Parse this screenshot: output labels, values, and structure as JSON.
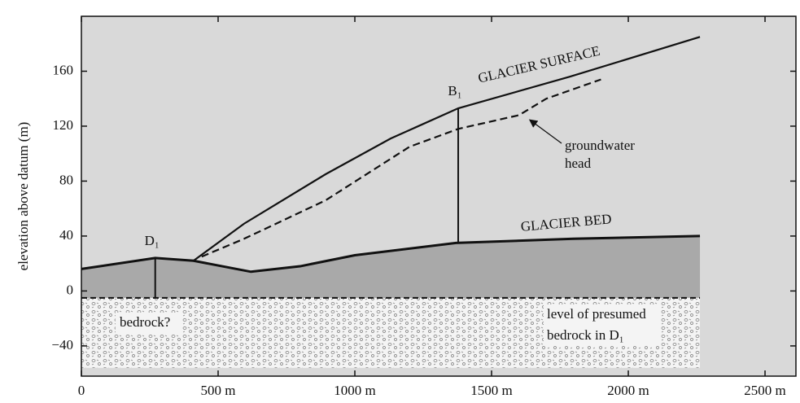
{
  "chart_data": {
    "type": "line",
    "ylabel": "elevation above datum (m)",
    "xlim": [
      0,
      2613
    ],
    "ylim": [
      -62,
      200
    ],
    "xticks": [
      0,
      {
        "value": 500,
        "label": "500 m"
      },
      {
        "value": 1000,
        "label": "1000 m"
      },
      {
        "value": 1500,
        "label": "1500 m"
      },
      {
        "value": 2000,
        "label": "2000 m"
      },
      {
        "value": 2500,
        "label": "2500 m"
      }
    ],
    "yticks": [
      {
        "value": -40,
        "label": "−40"
      },
      0,
      40,
      80,
      120,
      160
    ],
    "series": [
      {
        "name": "GLACIER SURFACE",
        "color": "#111111",
        "style": "solid",
        "x": [
          410,
          595,
          893,
          1131,
          1378,
          1786,
          2262
        ],
        "values": [
          22,
          49,
          85,
          111,
          133,
          156,
          185
        ]
      },
      {
        "name": "GLACIER BED",
        "color": "#111111",
        "style": "solid",
        "x": [
          0,
          270,
          410,
          620,
          800,
          1000,
          1370,
          1800,
          2262
        ],
        "values": [
          16,
          24,
          22,
          14,
          18,
          26,
          35,
          38,
          40
        ]
      },
      {
        "name": "groundwater head",
        "color": "#111111",
        "style": "dashed",
        "x": [
          440,
          595,
          893,
          1200,
          1378,
          1600,
          1700,
          1900
        ],
        "values": [
          25,
          38,
          66,
          105,
          118,
          128,
          140,
          154
        ]
      }
    ],
    "bedrock": {
      "label": "bedrock?",
      "top": -5,
      "bottom": -56,
      "xmax": 2262,
      "level_label": [
        "level of presumed",
        "bedrock in D₁"
      ]
    },
    "boreholes": [
      {
        "label": "D₁",
        "x": 270,
        "top": 24,
        "bottom": -5
      },
      {
        "label": "B₁",
        "x": 1378,
        "top": 133,
        "bottom": 35
      }
    ]
  }
}
